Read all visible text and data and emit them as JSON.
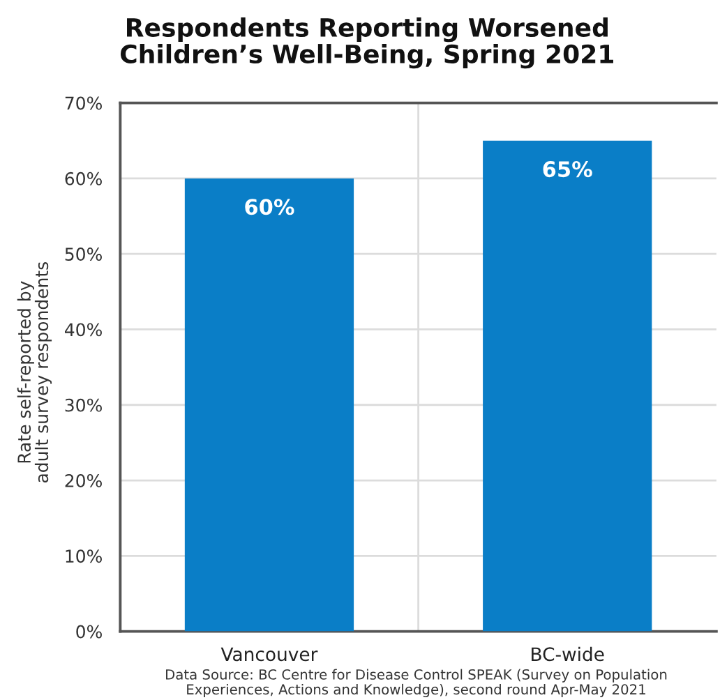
{
  "chart_data": {
    "type": "bar",
    "title": "Respondents Reporting Worsened\nChildren’s Well-Being, Spring 2021",
    "ylabel": "Rate self-reported by\nadult survey respondents",
    "categories": [
      "Vancouver",
      "BC-wide"
    ],
    "values": [
      60,
      65
    ],
    "color": "#0a7ec7",
    "value_labels": [
      "60%",
      "65%"
    ],
    "ylim": [
      0,
      70
    ],
    "yticks": [
      {
        "value": 0,
        "label": "0%"
      },
      {
        "value": 10,
        "label": "10%"
      },
      {
        "value": 20,
        "label": "20%"
      },
      {
        "value": 30,
        "label": "30%"
      },
      {
        "value": 40,
        "label": "40%"
      },
      {
        "value": 50,
        "label": "50%"
      },
      {
        "value": 60,
        "label": "60%"
      },
      {
        "value": 70,
        "label": "70%"
      }
    ],
    "grid": true,
    "annotations": [
      "Data Source: BC Centre for Disease Control SPEAK (Survey on Population\nExperiences, Actions and Knowledge), second round Apr-May 2021"
    ]
  }
}
